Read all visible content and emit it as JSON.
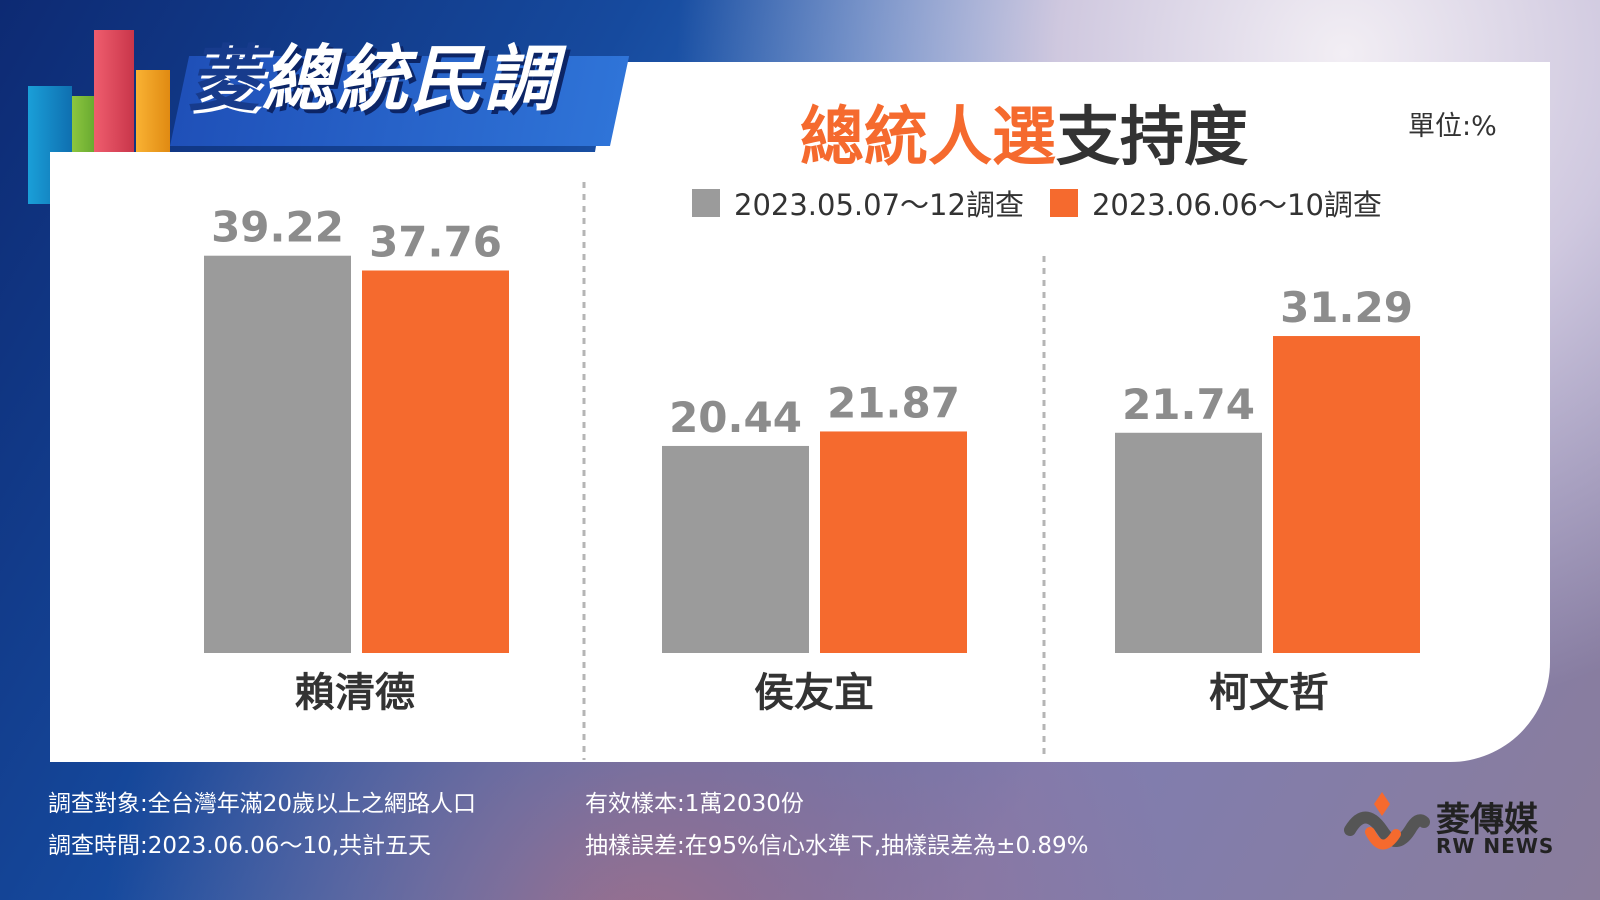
{
  "header": {
    "logo_text_first": "菱",
    "logo_text_rest": "總統民調",
    "title_accent": "總統人選",
    "title_rest": "支持度",
    "unit": "單位:%"
  },
  "colors": {
    "series_1": "#9b9b9b",
    "series_2": "#f56a2e",
    "title_accent": "#f56a2e",
    "panel": "#ffffff"
  },
  "chart_data": {
    "type": "bar",
    "title": "總統人選支持度",
    "unit": "單位:%",
    "categories": [
      "賴清德",
      "侯友宜",
      "柯文哲"
    ],
    "series": [
      {
        "name": "2023.05.07～12調查",
        "values": [
          39.22,
          20.44,
          21.74
        ]
      },
      {
        "name": "2023.06.06～10調查",
        "values": [
          37.76,
          21.87,
          31.29
        ]
      }
    ],
    "ylim": [
      0,
      40
    ],
    "grid": false,
    "legend_position": "top"
  },
  "footer": {
    "target": "調查對象:全台灣年滿20歲以上之網路人口",
    "period": "調查時間:2023.06.06～10,共計五天",
    "sample": "有效樣本:1萬2030份",
    "error": "抽樣誤差:在95%信心水準下,抽樣誤差為±0.89%"
  },
  "brand": {
    "name_cn": "菱傳媒",
    "name_en": "RW NEWS"
  }
}
